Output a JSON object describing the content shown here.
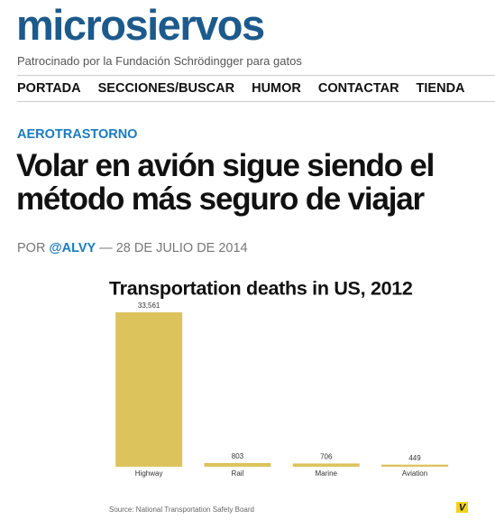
{
  "header": {
    "logo": "microsiervos",
    "tagline": "Patrocinado por la Fundación Schrödingger para gatos"
  },
  "nav": [
    "PORTADA",
    "SECCIONES/BUSCAR",
    "HUMOR",
    "CONTACTAR",
    "TIENDA"
  ],
  "article": {
    "category": "AEROTRASTORNO",
    "title_lines": [
      "Volar en avión sigue siendo el",
      "método más seguro de viajar"
    ],
    "byline": {
      "prefix": "POR",
      "author": "@ALVY",
      "date": "— 28 DE JULIO DE 2014"
    }
  },
  "chart_data": {
    "type": "bar",
    "title": "Transportation deaths in US, 2012",
    "categories": [
      "Highway",
      "Rail",
      "Marine",
      "Aviation"
    ],
    "values": [
      33561,
      803,
      706,
      449
    ],
    "value_labels": [
      "33,561",
      "803",
      "706",
      "449"
    ],
    "color": "#dcc35c",
    "source": "Source: National Transportation Safety Board",
    "badge": "V"
  }
}
